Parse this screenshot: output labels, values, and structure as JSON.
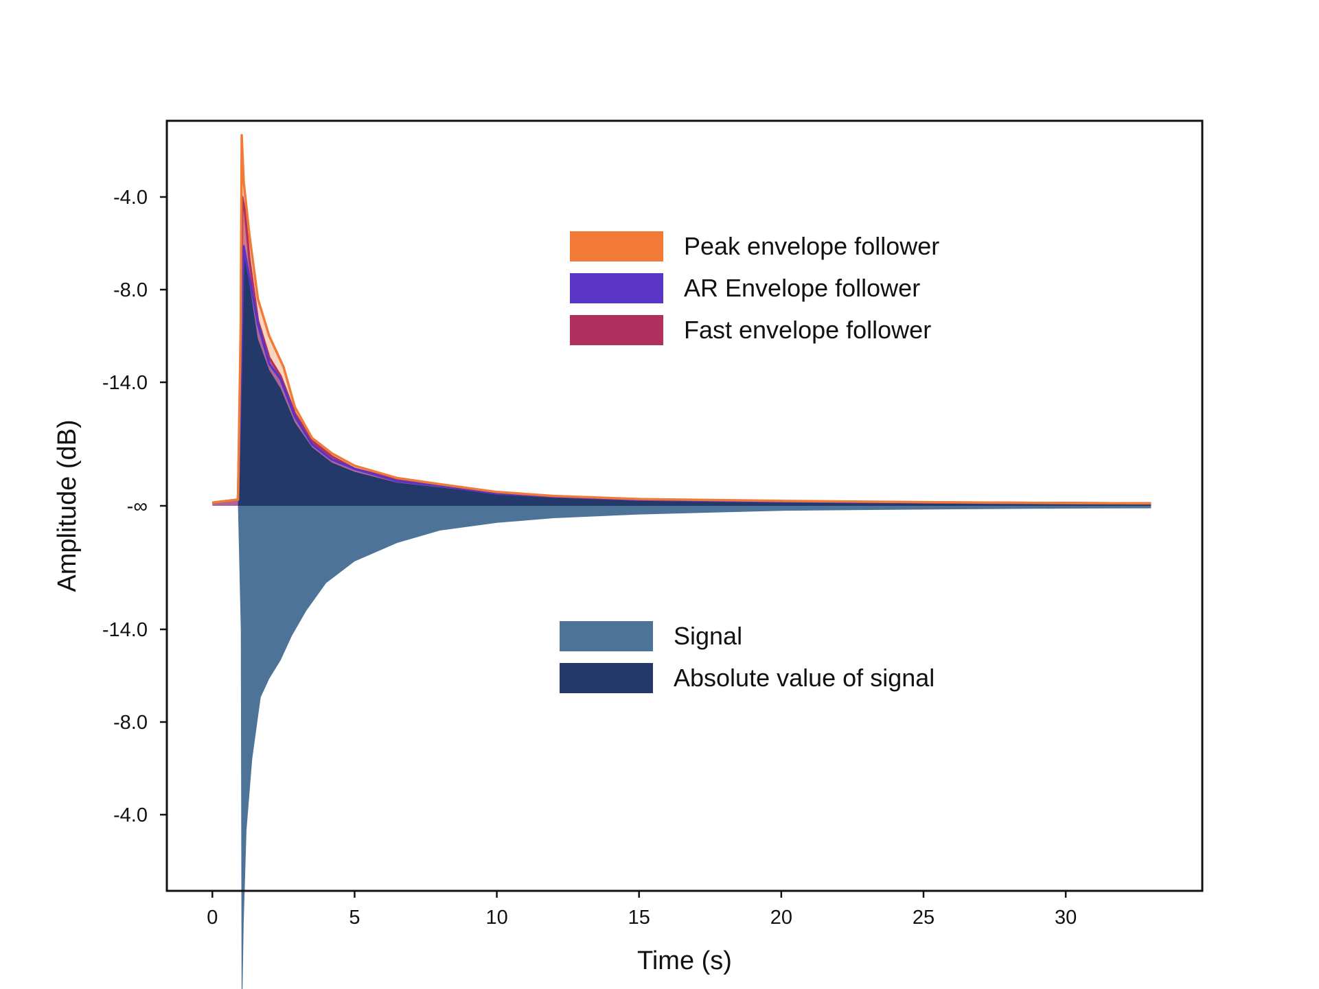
{
  "chart_data": {
    "type": "area",
    "xlabel": "Time (s)",
    "ylabel": "Amplitude (dB)",
    "xlim": [
      -1.6,
      34.8
    ],
    "x_ticks": [
      0,
      5,
      10,
      15,
      20,
      25,
      30
    ],
    "x_tick_labels": [
      "0",
      "5",
      "10",
      "15",
      "20",
      "25",
      "30"
    ],
    "y_ticks_top": [
      "-4.0",
      "-8.0",
      "-14.0",
      "-∞"
    ],
    "y_ticks_bottom": [
      "-14.0",
      "-8.0",
      "-4.0"
    ],
    "y_level_scale": "top level 1.0 at the -4.0 tick, 0 at -∞; mirrored below",
    "legends": [
      {
        "position": "upper-center",
        "entries": [
          {
            "label": "Peak envelope follower",
            "color": "#F07A36"
          },
          {
            "label": "AR Envelope follower",
            "color": "#5A35C4"
          },
          {
            "label": "Fast envelope follower",
            "color": "#B03060"
          }
        ]
      },
      {
        "position": "lower-center",
        "entries": [
          {
            "label": "Signal",
            "color": "#4E7398"
          },
          {
            "label": "Absolute value of signal",
            "color": "#22396A"
          }
        ]
      }
    ],
    "series": [
      {
        "name": "Peak envelope follower",
        "color": "#F07A36",
        "x": [
          0,
          0.9,
          1.0,
          1.03,
          1.1,
          1.3,
          1.6,
          2.0,
          2.4,
          2.5,
          2.9,
          3.5,
          4.2,
          5.0,
          6.5,
          8.0,
          10.0,
          12.0,
          15.0,
          20.0,
          25.0,
          30.0,
          33.0
        ],
        "y": [
          0.01,
          0.02,
          0.6,
          1.2,
          1.05,
          0.88,
          0.67,
          0.55,
          0.47,
          0.45,
          0.32,
          0.22,
          0.17,
          0.13,
          0.09,
          0.07,
          0.045,
          0.032,
          0.022,
          0.016,
          0.012,
          0.009,
          0.008
        ]
      },
      {
        "name": "AR Envelope follower",
        "color": "#5A35C4",
        "x": [
          0,
          0.9,
          1.0,
          1.1,
          1.3,
          1.6,
          2.0,
          2.4,
          2.9,
          3.5,
          4.2,
          5.0,
          6.5,
          8.0,
          10.0,
          12.0,
          15.0,
          20.0,
          25.0,
          30.0,
          33.0
        ],
        "y": [
          0.01,
          0.02,
          0.4,
          0.84,
          0.74,
          0.59,
          0.46,
          0.41,
          0.29,
          0.2,
          0.15,
          0.12,
          0.08,
          0.065,
          0.04,
          0.03,
          0.02,
          0.014,
          0.011,
          0.009,
          0.008
        ]
      },
      {
        "name": "Fast envelope follower",
        "color": "#B03060",
        "x": [
          0,
          0.9,
          1.0,
          1.05,
          1.15,
          1.3,
          1.6,
          2.0,
          2.4,
          2.9,
          3.5,
          4.2,
          5.0,
          6.5,
          8.0,
          10.0,
          12.0,
          15.0,
          20.0,
          25.0,
          30.0,
          33.0
        ],
        "y": [
          0.01,
          0.02,
          0.5,
          1.0,
          0.95,
          0.8,
          0.6,
          0.48,
          0.42,
          0.3,
          0.21,
          0.16,
          0.12,
          0.085,
          0.065,
          0.04,
          0.03,
          0.02,
          0.014,
          0.011,
          0.009,
          0.008
        ]
      },
      {
        "name": "Absolute value of signal",
        "color": "#22396A",
        "x": [
          0,
          0.9,
          1.0,
          1.1,
          1.3,
          1.6,
          2.0,
          2.4,
          2.9,
          3.5,
          4.2,
          5.0,
          6.5,
          8.0,
          10.0,
          12.0,
          15.0,
          20.0,
          25.0,
          30.0,
          33.0
        ],
        "y": [
          0.0,
          0.0,
          0.3,
          0.85,
          0.72,
          0.54,
          0.44,
          0.38,
          0.27,
          0.19,
          0.14,
          0.11,
          0.075,
          0.06,
          0.038,
          0.028,
          0.018,
          0.012,
          0.01,
          0.008,
          0.007
        ]
      },
      {
        "name": "Signal",
        "color": "#4E7398",
        "x": [
          0,
          0.9,
          1.0,
          1.03,
          1.1,
          1.2,
          1.4,
          1.7,
          2.0,
          2.4,
          2.8,
          3.3,
          4.0,
          5.0,
          6.5,
          8.0,
          10.0,
          12.0,
          15.0,
          20.0,
          25.0,
          30.0,
          33.0
        ],
        "y": [
          0.0,
          0.0,
          -0.4,
          -1.72,
          -1.35,
          -1.05,
          -0.82,
          -0.62,
          -0.56,
          -0.5,
          -0.42,
          -0.34,
          -0.25,
          -0.18,
          -0.12,
          -0.08,
          -0.055,
          -0.04,
          -0.028,
          -0.016,
          -0.012,
          -0.009,
          -0.008
        ]
      }
    ]
  }
}
